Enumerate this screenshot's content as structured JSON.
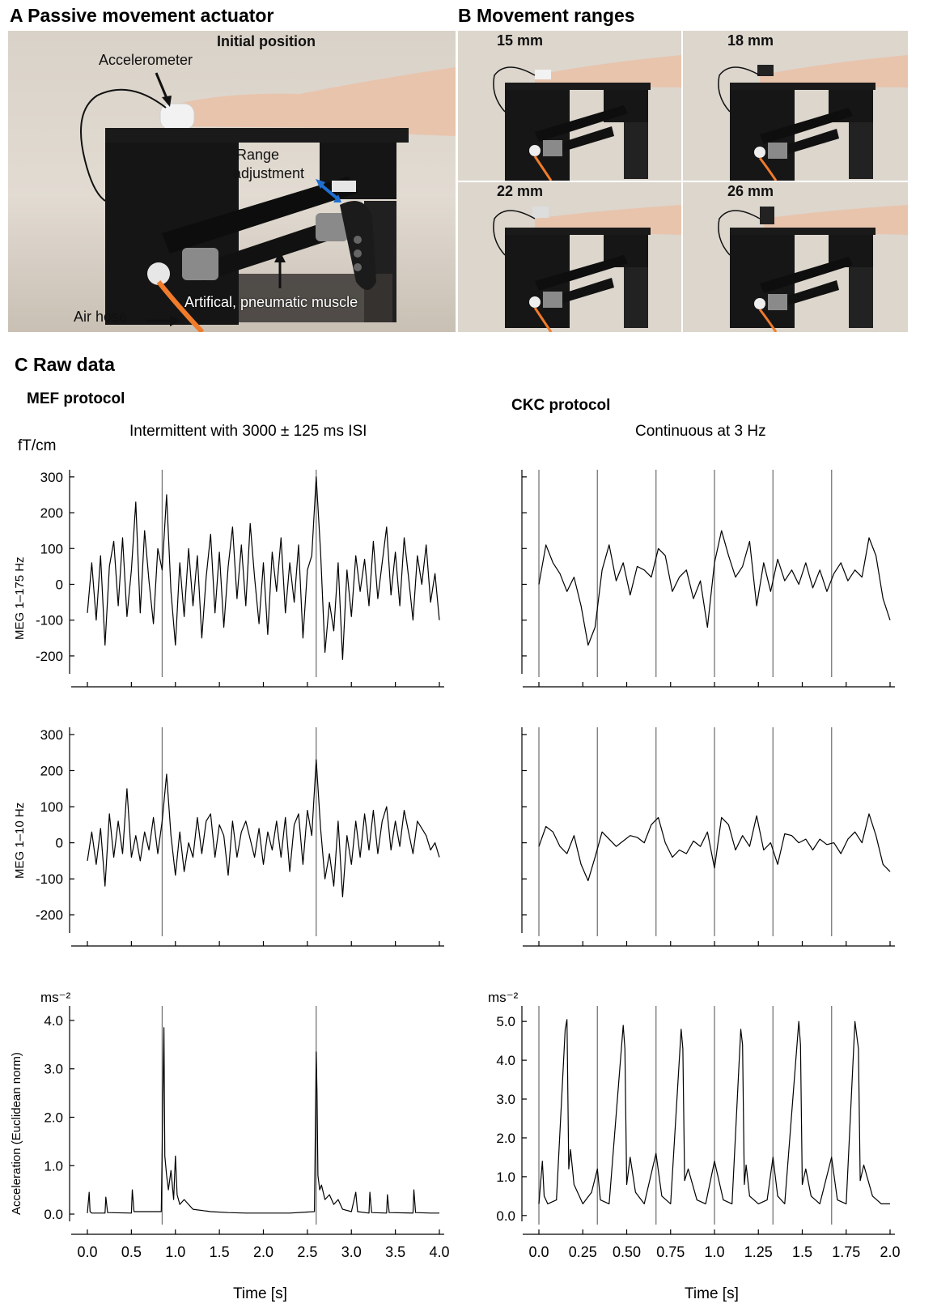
{
  "panel_a": {
    "title": "A Passive movement actuator",
    "subtitle": "Initial position",
    "labels": {
      "accelerometer": "Accelerometer",
      "range_line1": "Range",
      "range_line2": "adjustment",
      "muscle": "Artifical, pneumatic muscle",
      "air_hose": "Air hose"
    }
  },
  "panel_b": {
    "title": "B Movement ranges",
    "ranges": [
      "15 mm",
      "18 mm",
      "22 mm",
      "26 mm"
    ]
  },
  "panel_c": {
    "title": "C Raw data",
    "mef": {
      "title": "MEF protocol",
      "condition": "Intermittent with 3000 ± 125 ms ISI"
    },
    "ckc": {
      "title": "CKC protocol",
      "condition": "Continuous at 3 Hz"
    },
    "units": {
      "meg": "fT/cm",
      "acc": "ms⁻²"
    },
    "ylabels": {
      "meg_broad": "MEG 1–175 Hz",
      "meg_low": "MEG 1–10 Hz",
      "acc": "Acceleration (Euclidean norm)"
    },
    "xlabel": "Time [s]"
  },
  "chart_data": [
    {
      "type": "line",
      "name": "mef-meg-broadband",
      "ylabel": "MEG 1–175 Hz",
      "unit": "fT/cm",
      "xlim": [
        0,
        4.0
      ],
      "ylim": [
        -250,
        320
      ],
      "yticks": [
        -200,
        -100,
        0,
        100,
        200,
        300
      ],
      "yticklabels": [
        "-200",
        "-100",
        "0",
        "100",
        "200",
        "300"
      ],
      "stimulus_times": [
        0.85,
        2.6
      ],
      "x": [
        0.0,
        0.05,
        0.1,
        0.15,
        0.2,
        0.25,
        0.3,
        0.35,
        0.4,
        0.45,
        0.5,
        0.55,
        0.6,
        0.65,
        0.7,
        0.75,
        0.8,
        0.85,
        0.9,
        0.95,
        1.0,
        1.05,
        1.1,
        1.15,
        1.2,
        1.25,
        1.3,
        1.35,
        1.4,
        1.45,
        1.5,
        1.55,
        1.6,
        1.65,
        1.7,
        1.75,
        1.8,
        1.85,
        1.9,
        1.95,
        2.0,
        2.05,
        2.1,
        2.15,
        2.2,
        2.25,
        2.3,
        2.35,
        2.4,
        2.45,
        2.5,
        2.55,
        2.6,
        2.65,
        2.7,
        2.75,
        2.8,
        2.85,
        2.9,
        2.95,
        3.0,
        3.05,
        3.1,
        3.15,
        3.2,
        3.25,
        3.3,
        3.35,
        3.4,
        3.45,
        3.5,
        3.55,
        3.6,
        3.65,
        3.7,
        3.75,
        3.8,
        3.85,
        3.9,
        3.95,
        4.0
      ],
      "y": [
        -80,
        60,
        -100,
        80,
        -170,
        50,
        120,
        -60,
        130,
        -90,
        40,
        230,
        -80,
        150,
        10,
        -110,
        100,
        40,
        250,
        -20,
        -170,
        60,
        -90,
        100,
        -60,
        80,
        -150,
        20,
        140,
        -80,
        90,
        -120,
        50,
        160,
        -40,
        110,
        -60,
        170,
        20,
        -110,
        60,
        -140,
        90,
        -20,
        130,
        -80,
        60,
        -50,
        110,
        -150,
        40,
        80,
        300,
        90,
        -190,
        -50,
        -130,
        60,
        -210,
        40,
        -90,
        80,
        -20,
        70,
        -60,
        120,
        -40,
        60,
        160,
        -30,
        90,
        -60,
        130,
        20,
        -100,
        80,
        0,
        110,
        -50,
        30,
        -100
      ]
    },
    {
      "type": "line",
      "name": "ckc-meg-broadband",
      "ylabel": "MEG 1–175 Hz",
      "unit": "fT/cm",
      "xlim": [
        0,
        2.0
      ],
      "ylim": [
        -250,
        320
      ],
      "yticks": [
        -200,
        -100,
        0,
        100,
        200,
        300
      ],
      "yticklabels": [
        "",
        "",
        "",
        "",
        "",
        ""
      ],
      "stimulus_times": [
        0.0,
        0.333,
        0.667,
        1.0,
        1.333,
        1.667
      ],
      "x": [
        0.0,
        0.04,
        0.08,
        0.12,
        0.16,
        0.2,
        0.24,
        0.28,
        0.32,
        0.36,
        0.4,
        0.44,
        0.48,
        0.52,
        0.56,
        0.6,
        0.64,
        0.68,
        0.72,
        0.76,
        0.8,
        0.84,
        0.88,
        0.92,
        0.96,
        1.0,
        1.04,
        1.08,
        1.12,
        1.16,
        1.2,
        1.24,
        1.28,
        1.32,
        1.36,
        1.4,
        1.44,
        1.48,
        1.52,
        1.56,
        1.6,
        1.64,
        1.68,
        1.72,
        1.76,
        1.8,
        1.84,
        1.88,
        1.92,
        1.96,
        2.0
      ],
      "y": [
        0,
        110,
        60,
        30,
        -20,
        20,
        -60,
        -170,
        -120,
        40,
        110,
        10,
        60,
        -30,
        50,
        40,
        20,
        100,
        80,
        -20,
        20,
        40,
        -40,
        10,
        -120,
        60,
        150,
        80,
        20,
        50,
        120,
        -60,
        60,
        -20,
        70,
        10,
        40,
        0,
        60,
        -10,
        40,
        -20,
        30,
        60,
        10,
        40,
        20,
        130,
        80,
        -40,
        -100
      ]
    },
    {
      "type": "line",
      "name": "mef-meg-lowpass",
      "ylabel": "MEG 1–10 Hz",
      "unit": "fT/cm",
      "xlim": [
        0,
        4.0
      ],
      "ylim": [
        -250,
        320
      ],
      "yticks": [
        -200,
        -100,
        0,
        100,
        200,
        300
      ],
      "yticklabels": [
        "-200",
        "-100",
        "0",
        "100",
        "200",
        "300"
      ],
      "stimulus_times": [
        0.85,
        2.6
      ],
      "x": [
        0.0,
        0.05,
        0.1,
        0.15,
        0.2,
        0.25,
        0.3,
        0.35,
        0.4,
        0.45,
        0.5,
        0.55,
        0.6,
        0.65,
        0.7,
        0.75,
        0.8,
        0.85,
        0.9,
        0.95,
        1.0,
        1.05,
        1.1,
        1.15,
        1.2,
        1.25,
        1.3,
        1.35,
        1.4,
        1.45,
        1.5,
        1.55,
        1.6,
        1.65,
        1.7,
        1.75,
        1.8,
        1.85,
        1.9,
        1.95,
        2.0,
        2.05,
        2.1,
        2.15,
        2.2,
        2.25,
        2.3,
        2.35,
        2.4,
        2.45,
        2.5,
        2.55,
        2.6,
        2.65,
        2.7,
        2.75,
        2.8,
        2.85,
        2.9,
        2.95,
        3.0,
        3.05,
        3.1,
        3.15,
        3.2,
        3.25,
        3.3,
        3.35,
        3.4,
        3.45,
        3.5,
        3.55,
        3.6,
        3.65,
        3.7,
        3.75,
        3.8,
        3.85,
        3.9,
        3.95,
        4.0
      ],
      "y": [
        -50,
        30,
        -60,
        40,
        -120,
        80,
        -40,
        60,
        -30,
        150,
        -40,
        20,
        -50,
        30,
        -20,
        70,
        -30,
        60,
        190,
        20,
        -90,
        30,
        -80,
        0,
        -40,
        70,
        -30,
        60,
        80,
        -40,
        50,
        20,
        -90,
        60,
        -40,
        30,
        60,
        10,
        -40,
        40,
        -60,
        30,
        -20,
        60,
        -40,
        70,
        -80,
        50,
        80,
        -60,
        90,
        20,
        230,
        40,
        -100,
        -30,
        -120,
        60,
        -150,
        20,
        -60,
        60,
        -40,
        80,
        -20,
        90,
        -30,
        60,
        100,
        -20,
        60,
        -10,
        90,
        30,
        -30,
        60,
        40,
        20,
        -20,
        0,
        -40
      ]
    },
    {
      "type": "line",
      "name": "ckc-meg-lowpass",
      "ylabel": "MEG 1–10 Hz",
      "unit": "fT/cm",
      "xlim": [
        0,
        2.0
      ],
      "ylim": [
        -250,
        320
      ],
      "yticks": [
        -200,
        -100,
        0,
        100,
        200,
        300
      ],
      "yticklabels": [
        "",
        "",
        "",
        "",
        "",
        ""
      ],
      "stimulus_times": [
        0.0,
        0.333,
        0.667,
        1.0,
        1.333,
        1.667
      ],
      "x": [
        0.0,
        0.04,
        0.08,
        0.12,
        0.16,
        0.2,
        0.24,
        0.28,
        0.32,
        0.36,
        0.4,
        0.44,
        0.48,
        0.52,
        0.56,
        0.6,
        0.64,
        0.68,
        0.72,
        0.76,
        0.8,
        0.84,
        0.88,
        0.92,
        0.96,
        1.0,
        1.04,
        1.08,
        1.12,
        1.16,
        1.2,
        1.24,
        1.28,
        1.32,
        1.36,
        1.4,
        1.44,
        1.48,
        1.52,
        1.56,
        1.6,
        1.64,
        1.68,
        1.72,
        1.76,
        1.8,
        1.84,
        1.88,
        1.92,
        1.96,
        2.0
      ],
      "y": [
        -10,
        45,
        30,
        -10,
        -30,
        20,
        -60,
        -105,
        -40,
        30,
        10,
        -10,
        5,
        20,
        15,
        0,
        50,
        70,
        0,
        -40,
        -20,
        -30,
        5,
        -10,
        30,
        -70,
        70,
        50,
        -20,
        20,
        -10,
        75,
        -20,
        0,
        -60,
        25,
        20,
        0,
        10,
        -20,
        10,
        -5,
        0,
        -30,
        10,
        30,
        0,
        80,
        20,
        -60,
        -80
      ]
    },
    {
      "type": "line",
      "name": "mef-acceleration",
      "ylabel": "Acceleration (Euclidean norm)",
      "unit": "ms⁻²",
      "xlim": [
        0,
        4.0
      ],
      "ylim": [
        -0.15,
        4.3
      ],
      "yticks": [
        0,
        1,
        2,
        3,
        4
      ],
      "yticklabels": [
        "0.0",
        "1.0",
        "2.0",
        "3.0",
        "4.0"
      ],
      "xticks": [
        0,
        0.5,
        1.0,
        1.5,
        2.0,
        2.5,
        3.0,
        3.5,
        4.0
      ],
      "xticklabels": [
        "0.0",
        "0.5",
        "1.0",
        "1.5",
        "2.0",
        "2.5",
        "3.0",
        "3.5",
        "4.0"
      ],
      "xlabel": "Time [s]",
      "stimulus_times": [
        0.85,
        2.6
      ],
      "x": [
        0.0,
        0.02,
        0.03,
        0.05,
        0.2,
        0.21,
        0.23,
        0.5,
        0.51,
        0.53,
        0.84,
        0.86,
        0.87,
        0.88,
        0.9,
        0.92,
        0.95,
        0.98,
        1.0,
        1.02,
        1.05,
        1.1,
        1.2,
        1.4,
        1.6,
        1.8,
        2.0,
        2.3,
        2.58,
        2.6,
        2.61,
        2.62,
        2.64,
        2.66,
        2.7,
        2.75,
        2.8,
        2.85,
        2.9,
        3.0,
        3.05,
        3.07,
        3.2,
        3.21,
        3.23,
        3.4,
        3.41,
        3.43,
        3.7,
        3.71,
        3.73,
        3.9,
        4.0
      ],
      "y": [
        0.02,
        0.45,
        0.05,
        0.02,
        0.02,
        0.35,
        0.03,
        0.02,
        0.5,
        0.05,
        0.05,
        2.6,
        3.85,
        1.2,
        0.8,
        0.5,
        0.9,
        0.3,
        1.2,
        0.4,
        0.2,
        0.3,
        0.1,
        0.05,
        0.03,
        0.02,
        0.02,
        0.02,
        0.05,
        3.35,
        2.5,
        0.8,
        0.5,
        0.6,
        0.3,
        0.4,
        0.2,
        0.3,
        0.1,
        0.05,
        0.45,
        0.05,
        0.02,
        0.45,
        0.03,
        0.02,
        0.4,
        0.03,
        0.02,
        0.5,
        0.03,
        0.02,
        0.02
      ]
    },
    {
      "type": "line",
      "name": "ckc-acceleration",
      "ylabel": "Acceleration (Euclidean norm)",
      "unit": "ms⁻²",
      "xlim": [
        0,
        2.0
      ],
      "ylim": [
        -0.15,
        5.4
      ],
      "yticks": [
        0,
        1,
        2,
        3,
        4,
        5
      ],
      "yticklabels": [
        "0.0",
        "1.0",
        "2.0",
        "3.0",
        "4.0",
        "5.0"
      ],
      "xticks": [
        0,
        0.25,
        0.5,
        0.75,
        1.0,
        1.25,
        1.5,
        1.75,
        2.0
      ],
      "xticklabels": [
        "0.0",
        "0.25",
        "0.50",
        "0.75",
        "1.0",
        "1.25",
        "1.5",
        "1.75",
        "2.0"
      ],
      "xlabel": "Time [s]",
      "stimulus_times": [
        0.0,
        0.333,
        0.667,
        1.0,
        1.333,
        1.667
      ],
      "x": [
        0.0,
        0.02,
        0.03,
        0.05,
        0.1,
        0.15,
        0.16,
        0.17,
        0.18,
        0.2,
        0.25,
        0.3,
        0.333,
        0.35,
        0.4,
        0.48,
        0.49,
        0.5,
        0.52,
        0.55,
        0.6,
        0.667,
        0.7,
        0.75,
        0.81,
        0.82,
        0.83,
        0.85,
        0.9,
        0.95,
        1.0,
        1.05,
        1.1,
        1.15,
        1.16,
        1.17,
        1.18,
        1.2,
        1.25,
        1.3,
        1.333,
        1.36,
        1.4,
        1.48,
        1.49,
        1.5,
        1.52,
        1.55,
        1.6,
        1.667,
        1.7,
        1.75,
        1.8,
        1.82,
        1.83,
        1.85,
        1.9,
        1.95,
        2.0
      ],
      "y": [
        0.3,
        1.4,
        0.5,
        0.3,
        0.4,
        4.8,
        5.05,
        1.2,
        1.7,
        0.8,
        0.3,
        0.6,
        1.2,
        0.4,
        0.3,
        4.9,
        4.3,
        0.8,
        1.5,
        0.6,
        0.3,
        1.6,
        0.5,
        0.3,
        4.8,
        4.3,
        0.9,
        1.2,
        0.4,
        0.3,
        1.4,
        0.4,
        0.3,
        4.8,
        4.4,
        0.8,
        1.3,
        0.5,
        0.3,
        0.4,
        1.5,
        0.5,
        0.3,
        5.0,
        4.4,
        0.8,
        1.2,
        0.5,
        0.3,
        1.5,
        0.4,
        0.3,
        5.0,
        4.3,
        0.9,
        1.3,
        0.5,
        0.3,
        0.3
      ]
    }
  ]
}
